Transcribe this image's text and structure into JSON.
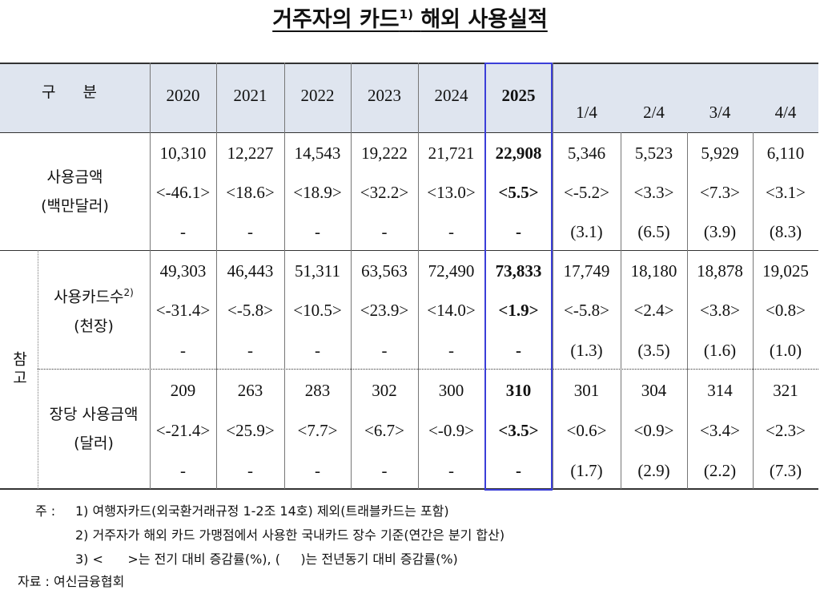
{
  "title": {
    "main": "거주자의 카드",
    "sup": "1)",
    "rest": "해외 사용실적"
  },
  "table": {
    "header": {
      "label": "구 분",
      "years": [
        "2020",
        "2021",
        "2022",
        "2023",
        "2024",
        "2025"
      ],
      "quarters": [
        "1/4",
        "2/4",
        "3/4",
        "4/4"
      ]
    },
    "side_label": "참고",
    "groups": [
      {
        "label": "사용금액",
        "unit": "(백만달러)",
        "rows": [
          [
            "10,310",
            "12,227",
            "14,543",
            "19,222",
            "21,721",
            "22,908",
            "5,346",
            "5,523",
            "5,929",
            "6,110"
          ],
          [
            "<-46.1>",
            "<18.6>",
            "<18.9>",
            "<32.2>",
            "<13.0>",
            "<5.5>",
            "<-5.2>",
            "<3.3>",
            "<7.3>",
            "<3.1>"
          ],
          [
            "-",
            "-",
            "-",
            "-",
            "-",
            "-",
            "(3.1)",
            "(6.5)",
            "(3.9)",
            "(8.3)"
          ]
        ]
      },
      {
        "label": "사용카드수",
        "label_sup": "2)",
        "unit": "(천장)",
        "rows": [
          [
            "49,303",
            "46,443",
            "51,311",
            "63,563",
            "72,490",
            "73,833",
            "17,749",
            "18,180",
            "18,878",
            "19,025"
          ],
          [
            "<-31.4>",
            "<-5.8>",
            "<10.5>",
            "<23.9>",
            "<14.0>",
            "<1.9>",
            "<-5.8>",
            "<2.4>",
            "<3.8>",
            "<0.8>"
          ],
          [
            "-",
            "-",
            "-",
            "-",
            "-",
            "-",
            "(1.3)",
            "(3.5)",
            "(1.6)",
            "(1.0)"
          ]
        ]
      },
      {
        "label": "장당 사용금액",
        "unit": "(달러)",
        "rows": [
          [
            "209",
            "263",
            "283",
            "302",
            "300",
            "310",
            "301",
            "304",
            "314",
            "321"
          ],
          [
            "<-21.4>",
            "<25.9>",
            "<7.7>",
            "<6.7>",
            "<-0.9>",
            "<3.5>",
            "<0.6>",
            "<0.9>",
            "<3.4>",
            "<2.3>"
          ],
          [
            "-",
            "-",
            "-",
            "-",
            "-",
            "-",
            "(1.7)",
            "(2.9)",
            "(2.2)",
            "(7.3)"
          ]
        ]
      }
    ]
  },
  "notes": {
    "prefix": "주 :",
    "items": [
      "1) 여행자카드(외국환거래규정 1-2조 14호) 제외(트래블카드는 포함)",
      "2) 거주자가 해외 카드 가맹점에서 사용한 국내카드 장수 기준(연간은 분기 합산)",
      "3) <      >는 전기 대비 증감률(%), (     )는 전년동기 대비 증감률(%)"
    ]
  },
  "source": "자료 : 여신금융협회"
}
